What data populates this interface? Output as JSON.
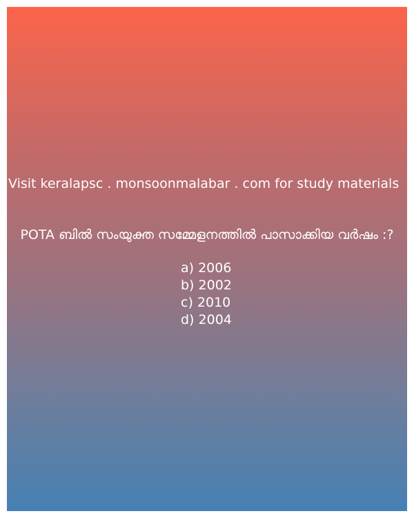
{
  "header": {
    "visit_text": "Visit keralapsc . monsoonmalabar . com for study materials"
  },
  "quiz": {
    "question": "POTA ബിൽ സംയുക്ത സമ്മേളനത്തിൽ പാസാക്കിയ വർഷം :?",
    "options": [
      "a) 2006",
      "b) 2002",
      "c) 2010",
      "d) 2004"
    ]
  },
  "colors": {
    "gradient_top": "#fc644a",
    "gradient_bottom": "#4680b4",
    "text": "#ffffff",
    "page_background": "#ffffff"
  }
}
